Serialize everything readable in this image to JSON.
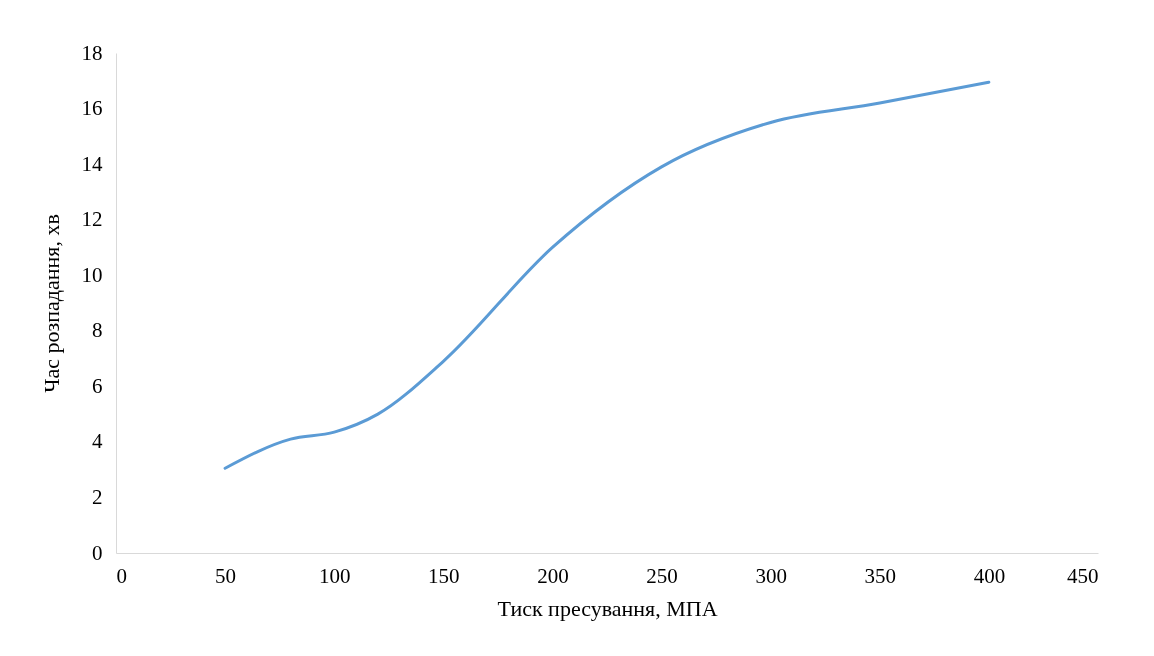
{
  "chart_data": {
    "type": "line",
    "xlabel": "Тиск пресування, МПА",
    "ylabel": "Час розпадання, хв",
    "x": [
      50,
      80,
      100,
      120,
      150,
      200,
      250,
      300,
      350,
      400
    ],
    "series": [
      {
        "color": "#5b9bd5",
        "values": [
          3.05,
          4.1,
          4.35,
          5.0,
          6.9,
          11.0,
          13.9,
          15.5,
          16.2,
          16.95
        ]
      }
    ],
    "xlim": [
      0,
      450
    ],
    "xticks": [
      0,
      50,
      100,
      150,
      200,
      250,
      300,
      350,
      400,
      450
    ],
    "ylim": [
      0,
      18
    ],
    "yticks": [
      0,
      2,
      4,
      6,
      8,
      10,
      12,
      14,
      16,
      18
    ],
    "grid": false,
    "marker": "none",
    "line_style": "solid"
  }
}
